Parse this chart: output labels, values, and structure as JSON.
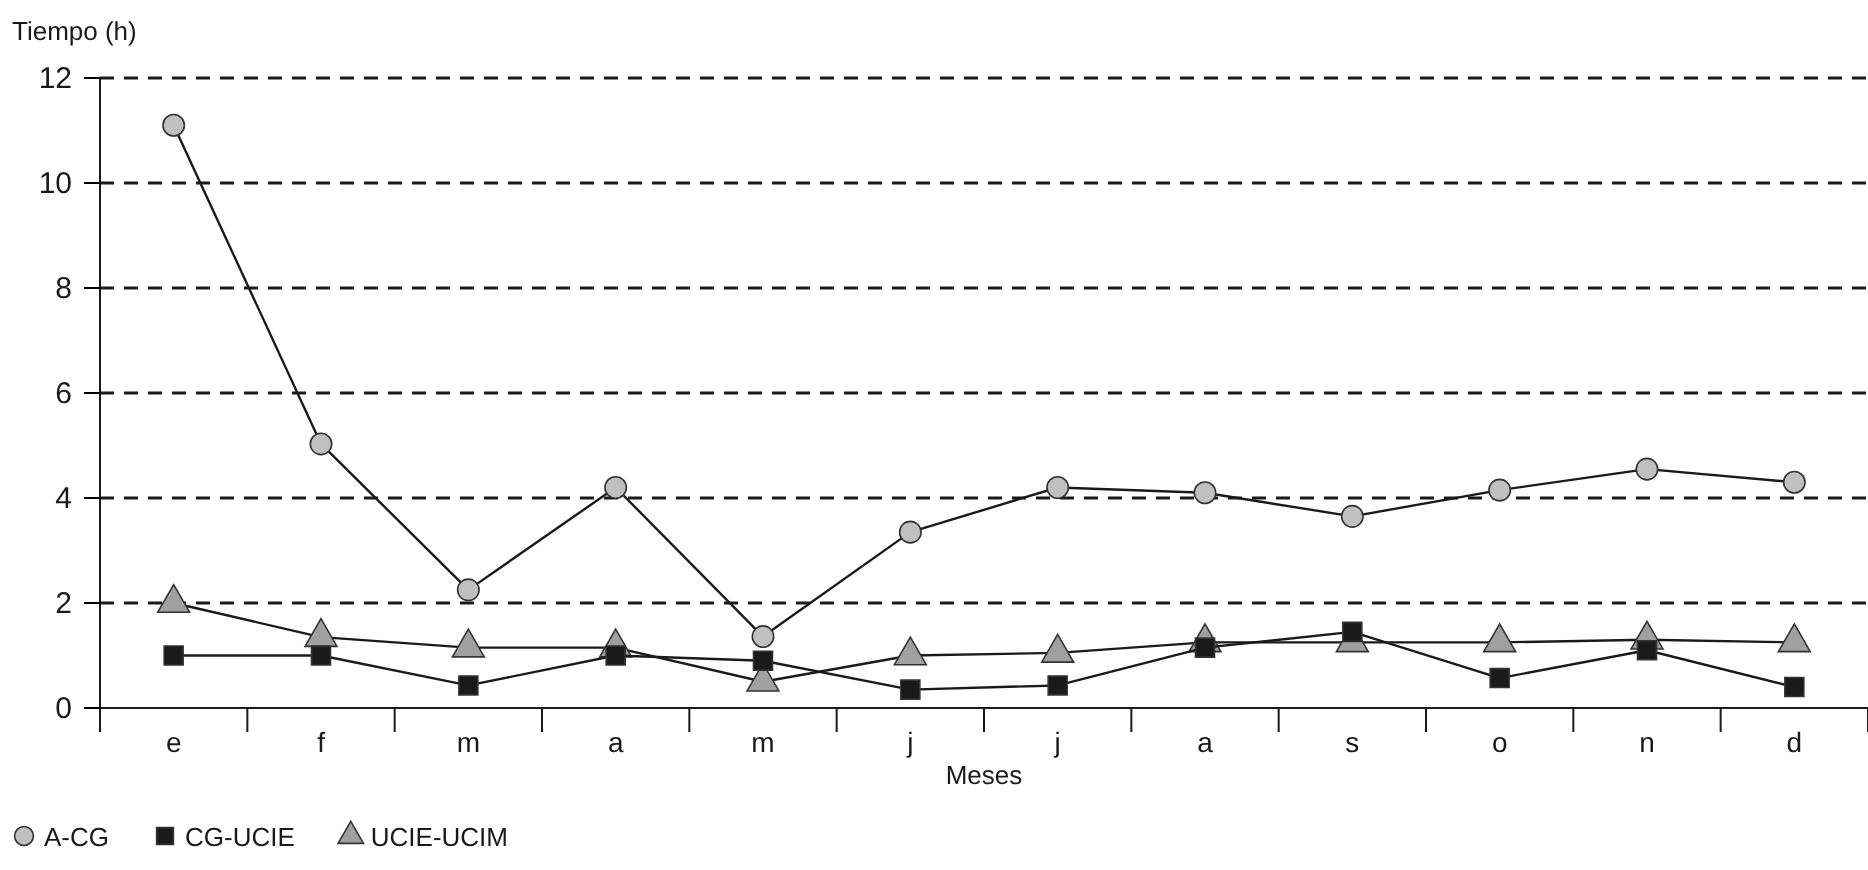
{
  "chart_data": {
    "type": "line",
    "ylabel": "Tiempo (h)",
    "xlabel": "Meses",
    "categories": [
      "e",
      "f",
      "m",
      "a",
      "m",
      "j",
      "j",
      "a",
      "s",
      "o",
      "n",
      "d"
    ],
    "ylim": [
      0,
      12
    ],
    "yticks": [
      0,
      2,
      4,
      6,
      8,
      10,
      12
    ],
    "grid": "y",
    "line_style": "solid",
    "legend": "bottom left",
    "series": [
      {
        "name": "A-CG",
        "color": "#c0c0c0",
        "marker": "circle",
        "values": [
          11.1,
          5.03,
          2.25,
          4.2,
          1.36,
          3.35,
          4.2,
          4.1,
          3.65,
          4.15,
          4.55,
          4.3
        ]
      },
      {
        "name": "CG-UCIE",
        "color": "#1a1a1a",
        "marker": "square",
        "values": [
          1.0,
          1.0,
          0.43,
          1.0,
          0.9,
          0.35,
          0.43,
          1.15,
          1.45,
          0.57,
          1.1,
          0.4
        ]
      },
      {
        "name": "UCIE-UCIM",
        "color": "#a0a0a0",
        "marker": "triangle",
        "values": [
          2.0,
          1.35,
          1.15,
          1.15,
          0.5,
          1.0,
          1.05,
          1.25,
          1.25,
          1.25,
          1.3,
          1.25
        ]
      }
    ]
  }
}
